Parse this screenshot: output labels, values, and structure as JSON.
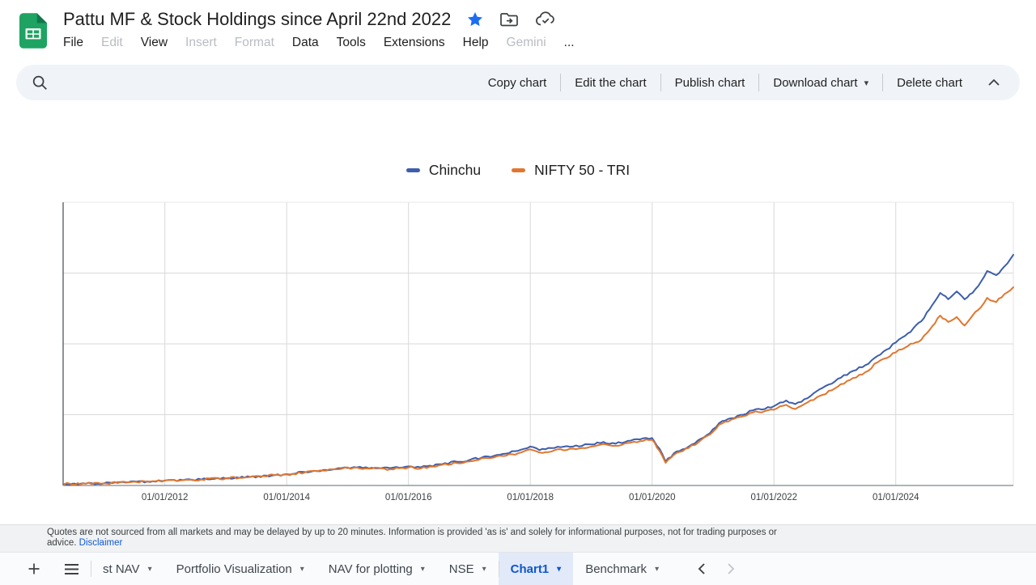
{
  "header": {
    "title": "Pattu MF & Stock Holdings since April 22nd 2022",
    "title_icons": [
      "star-icon",
      "move-folder-icon",
      "cloud-saved-icon"
    ],
    "menu": [
      {
        "label": "File",
        "disabled": false
      },
      {
        "label": "Edit",
        "disabled": true
      },
      {
        "label": "View",
        "disabled": false
      },
      {
        "label": "Insert",
        "disabled": true
      },
      {
        "label": "Format",
        "disabled": true
      },
      {
        "label": "Data",
        "disabled": false
      },
      {
        "label": "Tools",
        "disabled": false
      },
      {
        "label": "Extensions",
        "disabled": false
      },
      {
        "label": "Help",
        "disabled": false
      },
      {
        "label": "Gemini",
        "disabled": true
      },
      {
        "label": "...",
        "disabled": false
      }
    ],
    "right_icons": [
      "version-history-icon",
      "comments-icon",
      "video-call-icon",
      "video-call-caret",
      "share-button",
      "gemini-sparkle-icon"
    ]
  },
  "toolbar": {
    "search_icon": "search-icon",
    "buttons": [
      {
        "label": "Copy chart",
        "caret": false
      },
      {
        "label": "Edit the chart",
        "caret": false
      },
      {
        "label": "Publish chart",
        "caret": false
      },
      {
        "label": "Download chart",
        "caret": true
      },
      {
        "label": "Delete chart",
        "caret": false
      }
    ],
    "collapse_icon": "chevron-up-icon"
  },
  "chart_data": {
    "type": "line",
    "title": "",
    "legend_position": "top-center",
    "grid": true,
    "x_axis_labels": [
      "01/01/2012",
      "01/01/2014",
      "01/01/2016",
      "01/01/2018",
      "01/01/2020",
      "01/01/2022",
      "01/01/2024"
    ],
    "x_tick_years": [
      2012,
      2014,
      2016,
      2018,
      2020,
      2022,
      2024
    ],
    "x_range_years": [
      2010.33,
      2025.93
    ],
    "ylim_units": [
      0,
      4
    ],
    "y_gridline_units": [
      1,
      2,
      3
    ],
    "series": [
      {
        "name": "Chinchu",
        "color": "#3d5eab",
        "points": [
          [
            2010.35,
            0.02
          ],
          [
            2010.7,
            0.025
          ],
          [
            2011.0,
            0.03
          ],
          [
            2011.4,
            0.045
          ],
          [
            2011.8,
            0.06
          ],
          [
            2012.0,
            0.07
          ],
          [
            2012.3,
            0.075
          ],
          [
            2012.6,
            0.085
          ],
          [
            2013.0,
            0.1
          ],
          [
            2013.4,
            0.12
          ],
          [
            2013.8,
            0.145
          ],
          [
            2014.0,
            0.16
          ],
          [
            2014.3,
            0.19
          ],
          [
            2014.6,
            0.22
          ],
          [
            2014.9,
            0.245
          ],
          [
            2015.1,
            0.26
          ],
          [
            2015.4,
            0.25
          ],
          [
            2015.7,
            0.245
          ],
          [
            2016.0,
            0.27
          ],
          [
            2016.2,
            0.255
          ],
          [
            2016.5,
            0.3
          ],
          [
            2016.8,
            0.335
          ],
          [
            2017.0,
            0.36
          ],
          [
            2017.3,
            0.41
          ],
          [
            2017.6,
            0.45
          ],
          [
            2017.8,
            0.49
          ],
          [
            2018.0,
            0.55
          ],
          [
            2018.15,
            0.5
          ],
          [
            2018.4,
            0.53
          ],
          [
            2018.7,
            0.55
          ],
          [
            2019.0,
            0.58
          ],
          [
            2019.2,
            0.615
          ],
          [
            2019.4,
            0.59
          ],
          [
            2019.6,
            0.63
          ],
          [
            2019.8,
            0.65
          ],
          [
            2020.0,
            0.67
          ],
          [
            2020.12,
            0.52
          ],
          [
            2020.22,
            0.34
          ],
          [
            2020.4,
            0.48
          ],
          [
            2020.6,
            0.55
          ],
          [
            2020.8,
            0.66
          ],
          [
            2020.95,
            0.74
          ],
          [
            2021.1,
            0.88
          ],
          [
            2021.3,
            0.95
          ],
          [
            2021.5,
            1.0
          ],
          [
            2021.65,
            1.06
          ],
          [
            2021.85,
            1.08
          ],
          [
            2022.0,
            1.12
          ],
          [
            2022.2,
            1.2
          ],
          [
            2022.35,
            1.15
          ],
          [
            2022.5,
            1.22
          ],
          [
            2022.8,
            1.38
          ],
          [
            2023.0,
            1.47
          ],
          [
            2023.25,
            1.6
          ],
          [
            2023.5,
            1.7
          ],
          [
            2023.7,
            1.83
          ],
          [
            2023.85,
            1.92
          ],
          [
            2024.0,
            2.02
          ],
          [
            2024.2,
            2.15
          ],
          [
            2024.42,
            2.32
          ],
          [
            2024.6,
            2.55
          ],
          [
            2024.73,
            2.72
          ],
          [
            2024.86,
            2.63
          ],
          [
            2025.0,
            2.74
          ],
          [
            2025.13,
            2.63
          ],
          [
            2025.26,
            2.72
          ],
          [
            2025.4,
            2.88
          ],
          [
            2025.5,
            3.03
          ],
          [
            2025.65,
            2.97
          ],
          [
            2025.78,
            3.09
          ],
          [
            2025.93,
            3.26
          ]
        ]
      },
      {
        "name": "NIFTY 50 - TRI",
        "color": "#e0772f",
        "points": [
          [
            2010.35,
            0.02
          ],
          [
            2010.7,
            0.025
          ],
          [
            2011.0,
            0.03
          ],
          [
            2011.4,
            0.045
          ],
          [
            2011.8,
            0.06
          ],
          [
            2012.0,
            0.07
          ],
          [
            2012.3,
            0.075
          ],
          [
            2012.6,
            0.085
          ],
          [
            2013.0,
            0.1
          ],
          [
            2013.4,
            0.12
          ],
          [
            2013.8,
            0.145
          ],
          [
            2014.0,
            0.155
          ],
          [
            2014.3,
            0.185
          ],
          [
            2014.6,
            0.21
          ],
          [
            2014.9,
            0.235
          ],
          [
            2015.1,
            0.25
          ],
          [
            2015.4,
            0.24
          ],
          [
            2015.7,
            0.23
          ],
          [
            2016.0,
            0.255
          ],
          [
            2016.2,
            0.24
          ],
          [
            2016.5,
            0.285
          ],
          [
            2016.8,
            0.315
          ],
          [
            2017.0,
            0.34
          ],
          [
            2017.3,
            0.385
          ],
          [
            2017.6,
            0.42
          ],
          [
            2017.8,
            0.455
          ],
          [
            2018.0,
            0.51
          ],
          [
            2018.15,
            0.465
          ],
          [
            2018.4,
            0.5
          ],
          [
            2018.7,
            0.52
          ],
          [
            2019.0,
            0.55
          ],
          [
            2019.2,
            0.585
          ],
          [
            2019.4,
            0.56
          ],
          [
            2019.6,
            0.6
          ],
          [
            2019.8,
            0.625
          ],
          [
            2020.0,
            0.645
          ],
          [
            2020.12,
            0.49
          ],
          [
            2020.22,
            0.32
          ],
          [
            2020.4,
            0.46
          ],
          [
            2020.6,
            0.53
          ],
          [
            2020.8,
            0.64
          ],
          [
            2020.95,
            0.72
          ],
          [
            2021.1,
            0.86
          ],
          [
            2021.3,
            0.93
          ],
          [
            2021.5,
            0.98
          ],
          [
            2021.65,
            1.03
          ],
          [
            2021.85,
            1.05
          ],
          [
            2022.0,
            1.07
          ],
          [
            2022.2,
            1.14
          ],
          [
            2022.35,
            1.08
          ],
          [
            2022.5,
            1.15
          ],
          [
            2022.8,
            1.28
          ],
          [
            2023.0,
            1.37
          ],
          [
            2023.25,
            1.49
          ],
          [
            2023.5,
            1.6
          ],
          [
            2023.7,
            1.74
          ],
          [
            2023.85,
            1.8
          ],
          [
            2024.0,
            1.88
          ],
          [
            2024.2,
            1.97
          ],
          [
            2024.42,
            2.06
          ],
          [
            2024.6,
            2.25
          ],
          [
            2024.73,
            2.4
          ],
          [
            2024.86,
            2.31
          ],
          [
            2025.0,
            2.38
          ],
          [
            2025.13,
            2.26
          ],
          [
            2025.26,
            2.4
          ],
          [
            2025.4,
            2.52
          ],
          [
            2025.5,
            2.65
          ],
          [
            2025.65,
            2.59
          ],
          [
            2025.78,
            2.7
          ],
          [
            2025.93,
            2.8
          ]
        ]
      }
    ]
  },
  "disclaimer": {
    "line1": "Quotes are not sourced from all markets and may be delayed by up to 20 minutes. Information is provided 'as is' and solely for informational purposes, not for trading purposes or",
    "line2_prefix": "advice. ",
    "link": "Disclaimer"
  },
  "footer": {
    "add_icon": "plus-icon",
    "all_sheets_icon": "hamburger-icon",
    "tabs": [
      {
        "label": "st NAV",
        "active": false,
        "clipped": true
      },
      {
        "label": "Portfolio Visualization",
        "active": false
      },
      {
        "label": "NAV for plotting",
        "active": false
      },
      {
        "label": "NSE",
        "active": false
      },
      {
        "label": "Chart1",
        "active": true
      },
      {
        "label": "Benchmark",
        "active": false
      }
    ],
    "caret_glyph": "▾",
    "nav": {
      "prev_enabled": true,
      "next_enabled": false
    }
  },
  "colors": {
    "accent_blue": "#0b57d0",
    "active_tab_bg": "#e2e9f8",
    "share_pill_bg": "#d3e3fd",
    "toolbar_bg": "#f0f4f9",
    "series_blue": "#3d5eab",
    "series_orange": "#e0772f",
    "link_blue": "#1158d4",
    "sheets_green": "#1ea362"
  }
}
